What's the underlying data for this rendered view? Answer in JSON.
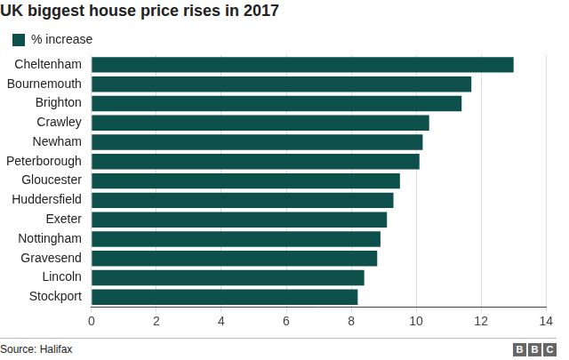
{
  "chart_data": {
    "type": "bar",
    "title": "UK biggest house price rises in 2017",
    "orientation": "horizontal",
    "categories": [
      "Cheltenham",
      "Bournemouth",
      "Brighton",
      "Crawley",
      "Newham",
      "Peterborough",
      "Gloucester",
      "Huddersfield",
      "Exeter",
      "Nottingham",
      "Gravesend",
      "Lincoln",
      "Stockport"
    ],
    "series": [
      {
        "name": "% increase",
        "color": "#0d4f4b",
        "values": [
          13.0,
          11.7,
          11.4,
          10.4,
          10.2,
          10.1,
          9.5,
          9.3,
          9.1,
          8.9,
          8.8,
          8.4,
          8.2
        ]
      }
    ],
    "xlim": [
      0,
      14
    ],
    "xticks": [
      0,
      2,
      4,
      6,
      8,
      10,
      12,
      14
    ],
    "grid": true,
    "legend": "top-left",
    "source": "Source: Halifax",
    "annotations": [
      "BBC"
    ]
  }
}
